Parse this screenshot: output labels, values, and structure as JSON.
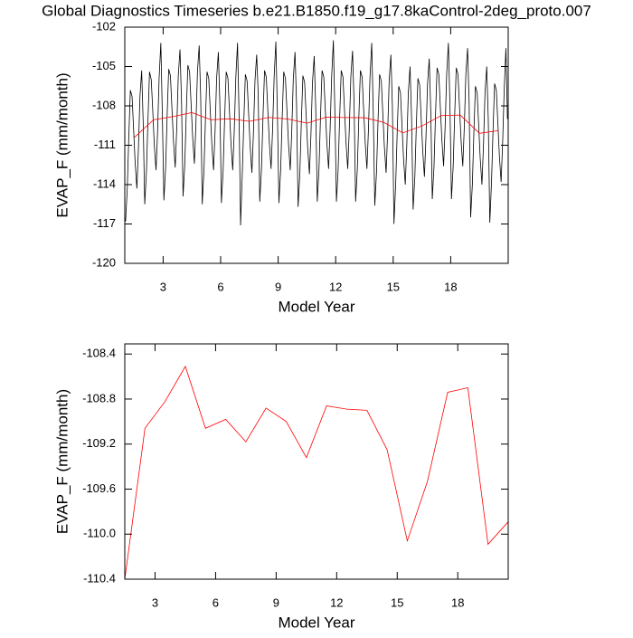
{
  "chart_data": [
    {
      "type": "line",
      "title": "Global Diagnostics Timeseries b.e21.B1850.f19_g17.8kaControl-2deg_proto.007",
      "x_label": "Model Year",
      "y_label": "EVAP_F (mm/month)",
      "xlim": [
        1,
        21
      ],
      "xticks": [
        3,
        6,
        9,
        12,
        15,
        18
      ],
      "ylim": [
        -120,
        -102
      ],
      "yticks": [
        -120,
        -117,
        -114,
        -111,
        -108,
        -105,
        -102
      ],
      "series": [
        {
          "color": "#000000",
          "x": [
            1.04,
            1.13,
            1.21,
            1.29,
            1.38,
            1.46,
            1.54,
            1.63,
            1.71,
            1.79,
            1.88,
            1.96,
            2.04,
            2.13,
            2.21,
            2.29,
            2.38,
            2.46,
            2.54,
            2.63,
            2.71,
            2.79,
            2.88,
            2.96,
            3.04,
            3.13,
            3.21,
            3.29,
            3.38,
            3.46,
            3.54,
            3.63,
            3.71,
            3.79,
            3.88,
            3.96,
            4.04,
            4.13,
            4.21,
            4.29,
            4.38,
            4.46,
            4.54,
            4.63,
            4.71,
            4.79,
            4.88,
            4.96,
            5.04,
            5.13,
            5.21,
            5.29,
            5.38,
            5.46,
            5.54,
            5.63,
            5.71,
            5.79,
            5.88,
            5.96,
            6.04,
            6.13,
            6.21,
            6.29,
            6.38,
            6.46,
            6.54,
            6.63,
            6.71,
            6.79,
            6.88,
            6.96,
            7.04,
            7.13,
            7.21,
            7.29,
            7.38,
            7.46,
            7.54,
            7.63,
            7.71,
            7.79,
            7.88,
            7.96,
            8.04,
            8.13,
            8.21,
            8.29,
            8.38,
            8.46,
            8.54,
            8.63,
            8.71,
            8.79,
            8.88,
            8.96,
            9.04,
            9.13,
            9.21,
            9.29,
            9.38,
            9.46,
            9.54,
            9.63,
            9.71,
            9.79,
            9.88,
            9.96,
            10.04,
            10.13,
            10.21,
            10.29,
            10.38,
            10.46,
            10.54,
            10.63,
            10.71,
            10.79,
            10.88,
            10.96,
            11.04,
            11.13,
            11.21,
            11.29,
            11.38,
            11.46,
            11.54,
            11.63,
            11.71,
            11.79,
            11.88,
            11.96,
            12.04,
            12.13,
            12.21,
            12.29,
            12.38,
            12.46,
            12.54,
            12.63,
            12.71,
            12.79,
            12.88,
            12.96,
            13.04,
            13.13,
            13.21,
            13.29,
            13.38,
            13.46,
            13.54,
            13.63,
            13.71,
            13.79,
            13.88,
            13.96,
            14.04,
            14.13,
            14.21,
            14.29,
            14.38,
            14.46,
            14.54,
            14.63,
            14.71,
            14.79,
            14.88,
            14.96,
            15.04,
            15.13,
            15.21,
            15.29,
            15.38,
            15.46,
            15.54,
            15.63,
            15.71,
            15.79,
            15.88,
            15.96,
            16.04,
            16.13,
            16.21,
            16.29,
            16.38,
            16.46,
            16.54,
            16.63,
            16.71,
            16.79,
            16.88,
            16.96,
            17.04,
            17.13,
            17.21,
            17.29,
            17.38,
            17.46,
            17.54,
            17.63,
            17.71,
            17.79,
            17.88,
            17.96,
            18.04,
            18.13,
            18.21,
            18.29,
            18.38,
            18.46,
            18.54,
            18.63,
            18.71,
            18.79,
            18.88,
            18.96,
            19.04,
            19.13,
            19.21,
            19.29,
            19.38,
            19.46,
            19.54,
            19.63,
            19.71,
            19.79,
            19.88,
            19.96,
            20.04,
            20.13,
            20.21,
            20.29,
            20.38,
            20.46,
            20.54,
            20.63,
            20.71,
            20.79,
            20.88,
            20.96
          ],
          "values": [
            -116.8,
            -114.3,
            -110.3,
            -106.8,
            -107.3,
            -109.8,
            -112.3,
            -114.3,
            -111.3,
            -107.3,
            -105.3,
            -109.3,
            -115.5,
            -113,
            -109,
            -105.4,
            -106,
            -108.4,
            -111,
            -112.9,
            -110,
            -105.9,
            -103.2,
            -108.8,
            -115.2,
            -112.7,
            -108.7,
            -105.2,
            -105.7,
            -108.2,
            -110.7,
            -112.7,
            -109.7,
            -105.7,
            -103.7,
            -107.7,
            -114.9,
            -112.4,
            -108.4,
            -104.9,
            -105.4,
            -107.9,
            -110.4,
            -112.4,
            -109.4,
            -105.4,
            -103.4,
            -107.4,
            -115.5,
            -112.9,
            -108.9,
            -105.4,
            -105.9,
            -108.4,
            -110.9,
            -112.9,
            -109.9,
            -105.9,
            -103.9,
            -107.9,
            -115.4,
            -112.9,
            -108.9,
            -105.4,
            -105.9,
            -108.4,
            -110.9,
            -112.9,
            -109.9,
            -105.9,
            -103.2,
            -108.6,
            -117.1,
            -113.1,
            -109.1,
            -105.6,
            -106.1,
            -108.6,
            -111.1,
            -113.1,
            -110.1,
            -106.1,
            -104.1,
            -107.1,
            -115.3,
            -112.8,
            -108.8,
            -105.3,
            -105.8,
            -108.3,
            -110.8,
            -112.8,
            -109.8,
            -105.8,
            -103.1,
            -108.5,
            -115.4,
            -112.9,
            -108.9,
            -105.4,
            -105.9,
            -108.4,
            -110.9,
            -112.9,
            -109.9,
            -105.9,
            -103.9,
            -107.9,
            -115.7,
            -113.2,
            -109.2,
            -105.7,
            -106.2,
            -108.7,
            -111.2,
            -113.2,
            -110.2,
            -106.2,
            -104.2,
            -108.2,
            -115.3,
            -112.8,
            -108.8,
            -105.3,
            -105.8,
            -108.3,
            -110.8,
            -112.8,
            -109.8,
            -105.8,
            -103.0,
            -108.6,
            -115.3,
            -112.8,
            -108.8,
            -105.3,
            -105.8,
            -108.3,
            -110.8,
            -112.8,
            -109.8,
            -105.8,
            -103.8,
            -107.8,
            -115.3,
            -112.8,
            -108.8,
            -105.3,
            -105.8,
            -108.3,
            -110.8,
            -112.8,
            -109.8,
            -105.8,
            -103.2,
            -108.4,
            -115.6,
            -113.1,
            -109.1,
            -105.6,
            -106.1,
            -108.6,
            -111.1,
            -113.1,
            -110.1,
            -106.1,
            -104.1,
            -108.1,
            -117.0,
            -114.0,
            -110.0,
            -106.5,
            -107.0,
            -109.5,
            -112.0,
            -114.0,
            -111.0,
            -107.0,
            -105.0,
            -109.0,
            -115.9,
            -113.4,
            -109.4,
            -105.9,
            -106.4,
            -108.9,
            -111.4,
            -113.4,
            -110.4,
            -106.4,
            -104.4,
            -108.4,
            -115.1,
            -112.6,
            -108.6,
            -105.1,
            -105.6,
            -108.1,
            -110.6,
            -112.6,
            -109.6,
            -105.6,
            -103.2,
            -107.9,
            -115.1,
            -112.6,
            -108.6,
            -105.1,
            -105.6,
            -108.1,
            -110.6,
            -112.6,
            -109.6,
            -105.6,
            -103.6,
            -107.6,
            -116.5,
            -114.0,
            -110.0,
            -106.5,
            -107.0,
            -109.5,
            -112.0,
            -114.0,
            -111.0,
            -107.0,
            -105.0,
            -109.0,
            -116.9,
            -113.8,
            -109.8,
            -106.3,
            -106.8,
            -109.3,
            -111.8,
            -113.8,
            -110.8,
            -106.8,
            -103.6,
            -109.0
          ]
        },
        {
          "color": "#ff0000",
          "x": [
            1.5,
            2.5,
            3.5,
            4.5,
            5.5,
            6.5,
            7.5,
            8.5,
            9.5,
            10.5,
            11.5,
            12.5,
            13.5,
            14.5,
            15.5,
            16.5,
            17.5,
            18.5,
            19.5,
            20.5
          ],
          "values": [
            -110.4,
            -109.06,
            -108.82,
            -108.51,
            -109.06,
            -108.98,
            -109.18,
            -108.88,
            -109.0,
            -109.32,
            -108.86,
            -108.89,
            -108.9,
            -109.25,
            -110.06,
            -109.53,
            -108.74,
            -108.7,
            -110.09,
            -109.89
          ]
        }
      ]
    },
    {
      "type": "line",
      "x_label": "Model Year",
      "y_label": "EVAP_F (mm/month)",
      "xlim": [
        1.5,
        20.5
      ],
      "xticks": [
        3,
        6,
        9,
        12,
        15,
        18
      ],
      "ylim": [
        -110.4,
        -108.31
      ],
      "yticks": [
        -110.4,
        {
          "value": -110,
          "label": "-110.0"
        },
        -109.6,
        -109.2,
        -108.8,
        -108.4
      ],
      "series": [
        {
          "color": "#ff0000",
          "x": [
            1.5,
            2.5,
            3.5,
            4.5,
            5.5,
            6.5,
            7.5,
            8.5,
            9.5,
            10.5,
            11.5,
            12.5,
            13.5,
            14.5,
            15.5,
            16.5,
            17.5,
            18.5,
            19.5,
            20.5
          ],
          "values": [
            -110.4,
            -109.06,
            -108.82,
            -108.51,
            -109.06,
            -108.98,
            -109.18,
            -108.88,
            -109.0,
            -109.32,
            -108.86,
            -108.89,
            -108.9,
            -109.25,
            -110.06,
            -109.53,
            -108.74,
            -108.7,
            -110.09,
            -109.89
          ]
        }
      ]
    }
  ]
}
